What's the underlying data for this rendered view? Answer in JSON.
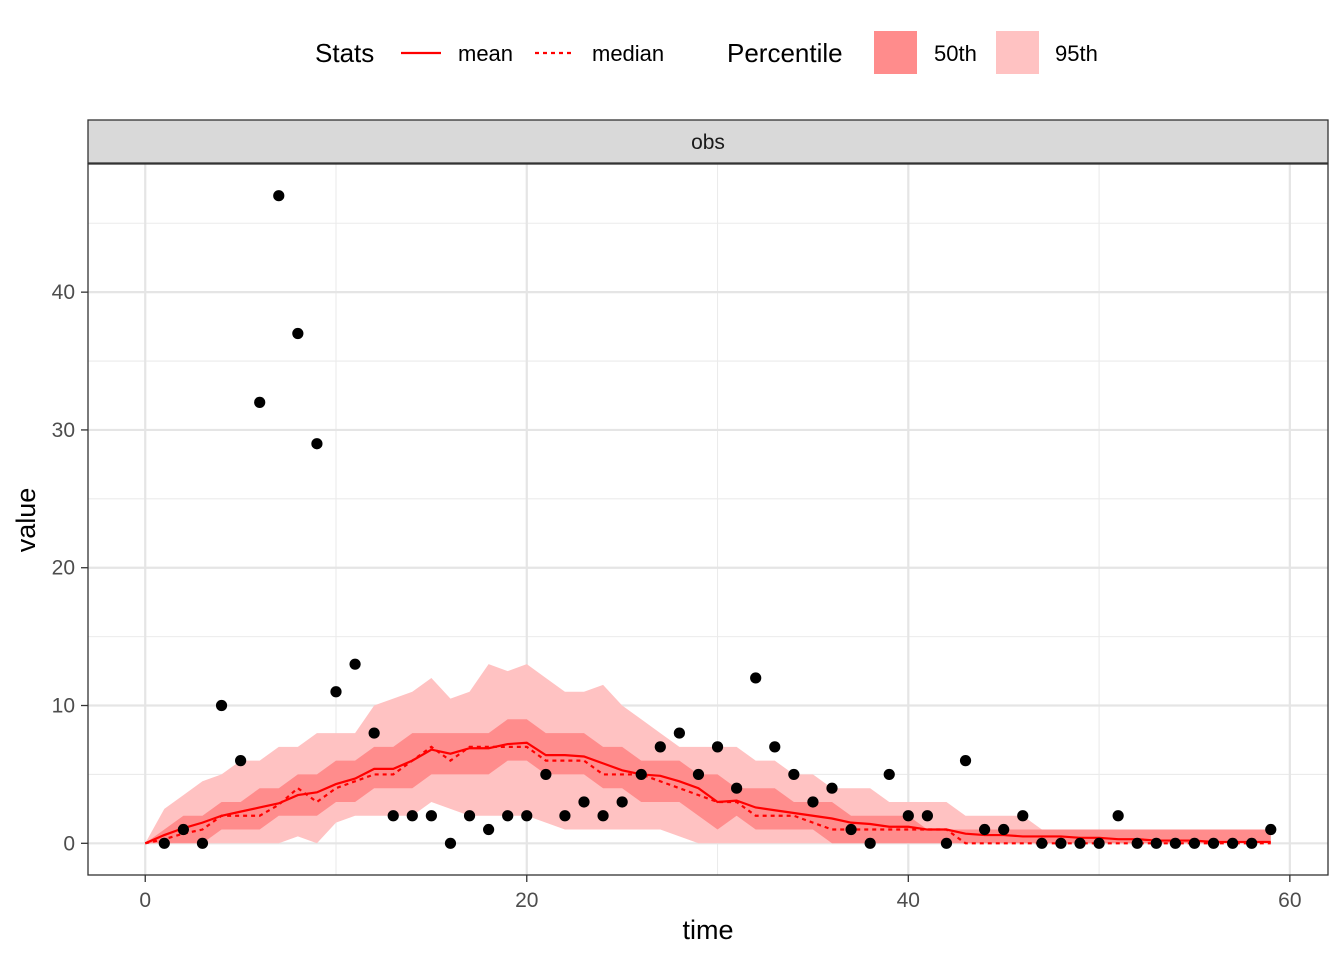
{
  "legend": {
    "stats_title": "Stats",
    "mean_label": "mean",
    "median_label": "median",
    "percentile_title": "Percentile",
    "p50_label": "50th",
    "p95_label": "95th"
  },
  "colors": {
    "line": "#ff0000",
    "band50": "#ff8c8c",
    "band95": "#ffc2c2",
    "points": "#000000",
    "strip": "#d9d9d9"
  },
  "chart_data": {
    "type": "line",
    "facet": "obs",
    "xlabel": "time",
    "ylabel": "value",
    "xlim": [
      -3,
      62
    ],
    "ylim": [
      -2.3,
      49.3
    ],
    "xticks": [
      0,
      20,
      40,
      60
    ],
    "yticks": [
      0,
      10,
      20,
      30,
      40
    ],
    "grid": true,
    "legend_position": "top",
    "observed": {
      "x": [
        1,
        2,
        3,
        4,
        5,
        6,
        7,
        8,
        9,
        10,
        11,
        12,
        13,
        14,
        15,
        16,
        17,
        18,
        19,
        20,
        21,
        22,
        23,
        24,
        25,
        26,
        27,
        28,
        29,
        30,
        31,
        32,
        33,
        34,
        35,
        36,
        37,
        38,
        39,
        40,
        41,
        42,
        43,
        44,
        45,
        46,
        47,
        48,
        49,
        50,
        51,
        52,
        53,
        54,
        55,
        56,
        57,
        58,
        59
      ],
      "y": [
        0,
        1,
        0,
        10,
        6,
        32,
        47,
        37,
        29,
        11,
        13,
        8,
        2,
        2,
        2,
        0,
        2,
        1,
        2,
        2,
        5,
        2,
        3,
        2,
        3,
        5,
        7,
        8,
        5,
        7,
        4,
        12,
        7,
        5,
        3,
        4,
        1,
        0,
        5,
        2,
        2,
        0,
        6,
        1,
        1,
        2,
        0,
        0,
        0,
        0,
        2,
        0,
        0,
        0,
        0,
        0,
        0,
        0,
        1
      ]
    },
    "simulated_time": [
      0,
      1,
      2,
      3,
      4,
      5,
      6,
      7,
      8,
      9,
      10,
      11,
      12,
      13,
      14,
      15,
      16,
      17,
      18,
      19,
      20,
      21,
      22,
      23,
      24,
      25,
      26,
      27,
      28,
      29,
      30,
      31,
      32,
      33,
      34,
      35,
      36,
      37,
      38,
      39,
      40,
      41,
      42,
      43,
      44,
      45,
      46,
      47,
      48,
      49,
      50,
      51,
      52,
      53,
      54,
      55,
      56,
      57,
      58,
      59
    ],
    "series": [
      {
        "name": "mean",
        "values": [
          0,
          0.6,
          1.1,
          1.5,
          2,
          2.3,
          2.6,
          2.9,
          3.5,
          3.7,
          4.3,
          4.7,
          5.4,
          5.4,
          6,
          6.8,
          6.5,
          6.9,
          6.9,
          7.2,
          7.3,
          6.4,
          6.4,
          6.3,
          5.8,
          5.3,
          5,
          4.9,
          4.5,
          4,
          3,
          3.1,
          2.6,
          2.4,
          2.2,
          2,
          1.8,
          1.5,
          1.4,
          1.2,
          1.2,
          1,
          1,
          0.7,
          0.6,
          0.6,
          0.5,
          0.5,
          0.5,
          0.4,
          0.4,
          0.3,
          0.3,
          0.2,
          0.2,
          0.2,
          0.1,
          0.1,
          0.1,
          0.1
        ]
      },
      {
        "name": "median",
        "values": [
          0,
          0.3,
          0.7,
          1,
          2,
          2,
          2,
          2.8,
          4,
          3,
          4,
          4.5,
          5,
          5,
          6,
          7,
          6,
          7,
          7,
          7,
          7,
          6,
          6,
          6,
          5,
          5,
          5,
          4.5,
          4,
          3.5,
          3,
          3,
          2,
          2,
          2,
          1.5,
          1,
          1,
          1,
          1,
          1,
          1,
          1,
          0,
          0,
          0,
          0,
          0,
          0,
          0,
          0,
          0,
          0,
          0,
          0,
          0,
          0,
          0,
          0,
          0
        ]
      },
      {
        "name": "50th_lower",
        "values": [
          0,
          0,
          0,
          0,
          1,
          1,
          1,
          2,
          2,
          2,
          3,
          3,
          4,
          4,
          4,
          5,
          5,
          5,
          5,
          6,
          6,
          5,
          5,
          5,
          4,
          4,
          3,
          3,
          3,
          2,
          1,
          2,
          1,
          1,
          1,
          1,
          0,
          0,
          0,
          0,
          0,
          0,
          0,
          0,
          0,
          0,
          0,
          0,
          0,
          0,
          0,
          0,
          0,
          0,
          0,
          0,
          0,
          0,
          0,
          0
        ]
      },
      {
        "name": "50th_upper",
        "values": [
          0,
          1,
          2,
          2,
          3,
          3,
          4,
          4,
          5,
          5,
          6,
          6,
          7,
          7,
          8,
          8,
          8,
          8,
          8,
          9,
          9,
          8,
          8,
          8,
          7,
          7,
          6,
          6,
          6,
          5,
          5,
          4,
          4,
          4,
          3,
          3,
          3,
          2,
          2,
          2,
          2,
          1,
          1,
          1,
          1,
          1,
          1,
          1,
          1,
          1,
          1,
          1,
          1,
          1,
          1,
          1,
          1,
          1,
          1,
          1
        ]
      },
      {
        "name": "95th_lower",
        "values": [
          0,
          0,
          0,
          0,
          0,
          0,
          0,
          0,
          0.5,
          0,
          1.5,
          2,
          2,
          2,
          2,
          3,
          2.5,
          2,
          2,
          2,
          2,
          1.5,
          1,
          1,
          1,
          1,
          1,
          1,
          0.5,
          0,
          0,
          0,
          0,
          0,
          0,
          0,
          0,
          0,
          0,
          0,
          0,
          0,
          0,
          0,
          0,
          0,
          0,
          0,
          0,
          0,
          0,
          0,
          0,
          0,
          0,
          0,
          0,
          0,
          0,
          0
        ]
      },
      {
        "name": "95th_upper",
        "values": [
          0,
          2.5,
          3.5,
          4.5,
          5,
          6,
          6,
          7,
          7,
          8,
          8,
          8,
          10,
          10.5,
          11,
          12,
          10.5,
          11,
          13,
          12.5,
          13,
          12,
          11,
          11,
          11.5,
          10,
          9,
          8,
          7,
          7,
          7,
          7,
          6,
          6,
          5,
          5,
          4,
          4,
          4,
          3,
          3,
          3,
          3,
          2,
          2,
          2,
          2,
          1,
          1,
          1,
          1,
          1,
          0.5,
          0.5,
          0.5,
          0.5,
          0.5,
          0.5,
          0.5,
          0.5
        ]
      }
    ]
  }
}
